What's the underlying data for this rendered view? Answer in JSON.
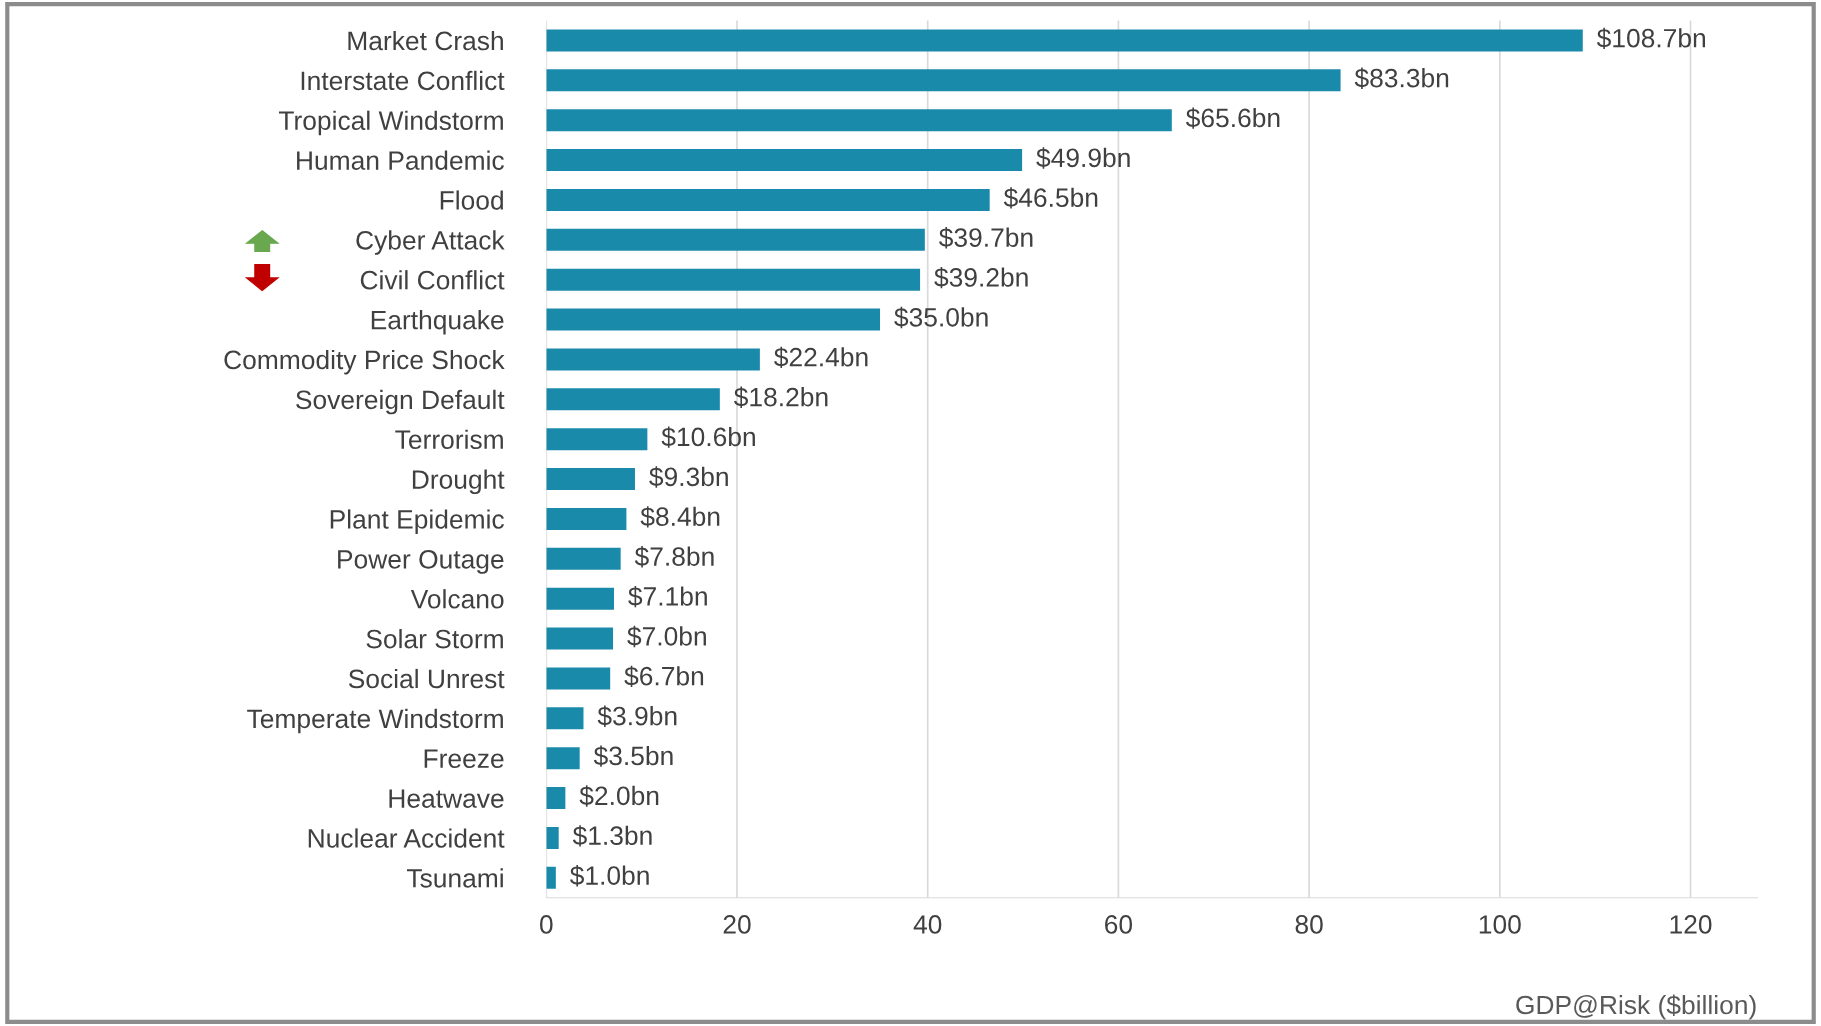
{
  "chart_data": {
    "type": "bar",
    "orientation": "horizontal",
    "xlabel": "GDP@Risk ($billion)",
    "categories": [
      "Market Crash",
      "Interstate Conflict",
      "Tropical Windstorm",
      "Human Pandemic",
      "Flood",
      "Cyber Attack",
      "Civil Conflict",
      "Earthquake",
      "Commodity Price Shock",
      "Sovereign Default",
      "Terrorism",
      "Drought",
      "Plant Epidemic",
      "Power Outage",
      "Volcano",
      "Solar Storm",
      "Social Unrest",
      "Temperate Windstorm",
      "Freeze",
      "Heatwave",
      "Nuclear Accident",
      "Tsunami"
    ],
    "values": [
      108.7,
      83.3,
      65.6,
      49.9,
      46.5,
      39.7,
      39.2,
      35.0,
      22.4,
      18.2,
      10.6,
      9.3,
      8.4,
      7.8,
      7.1,
      7.0,
      6.7,
      3.9,
      3.5,
      2.0,
      1.3,
      1.0
    ],
    "value_labels": [
      "$108.7bn",
      "$83.3bn",
      "$65.6bn",
      "$49.9bn",
      "$46.5bn",
      "$39.7bn",
      "$39.2bn",
      "$35.0bn",
      "$22.4bn",
      "$18.2bn",
      "$10.6bn",
      "$9.3bn",
      "$8.4bn",
      "$7.8bn",
      "$7.1bn",
      "$7.0bn",
      "$6.7bn",
      "$3.9bn",
      "$3.5bn",
      "$2.0bn",
      "$1.3bn",
      "$1.0bn"
    ],
    "color": "#1a8aab",
    "xlim": [
      0,
      127
    ],
    "xticks": [
      0,
      20,
      40,
      60,
      80,
      100,
      120
    ],
    "grid": "x",
    "legend": false
  }
}
